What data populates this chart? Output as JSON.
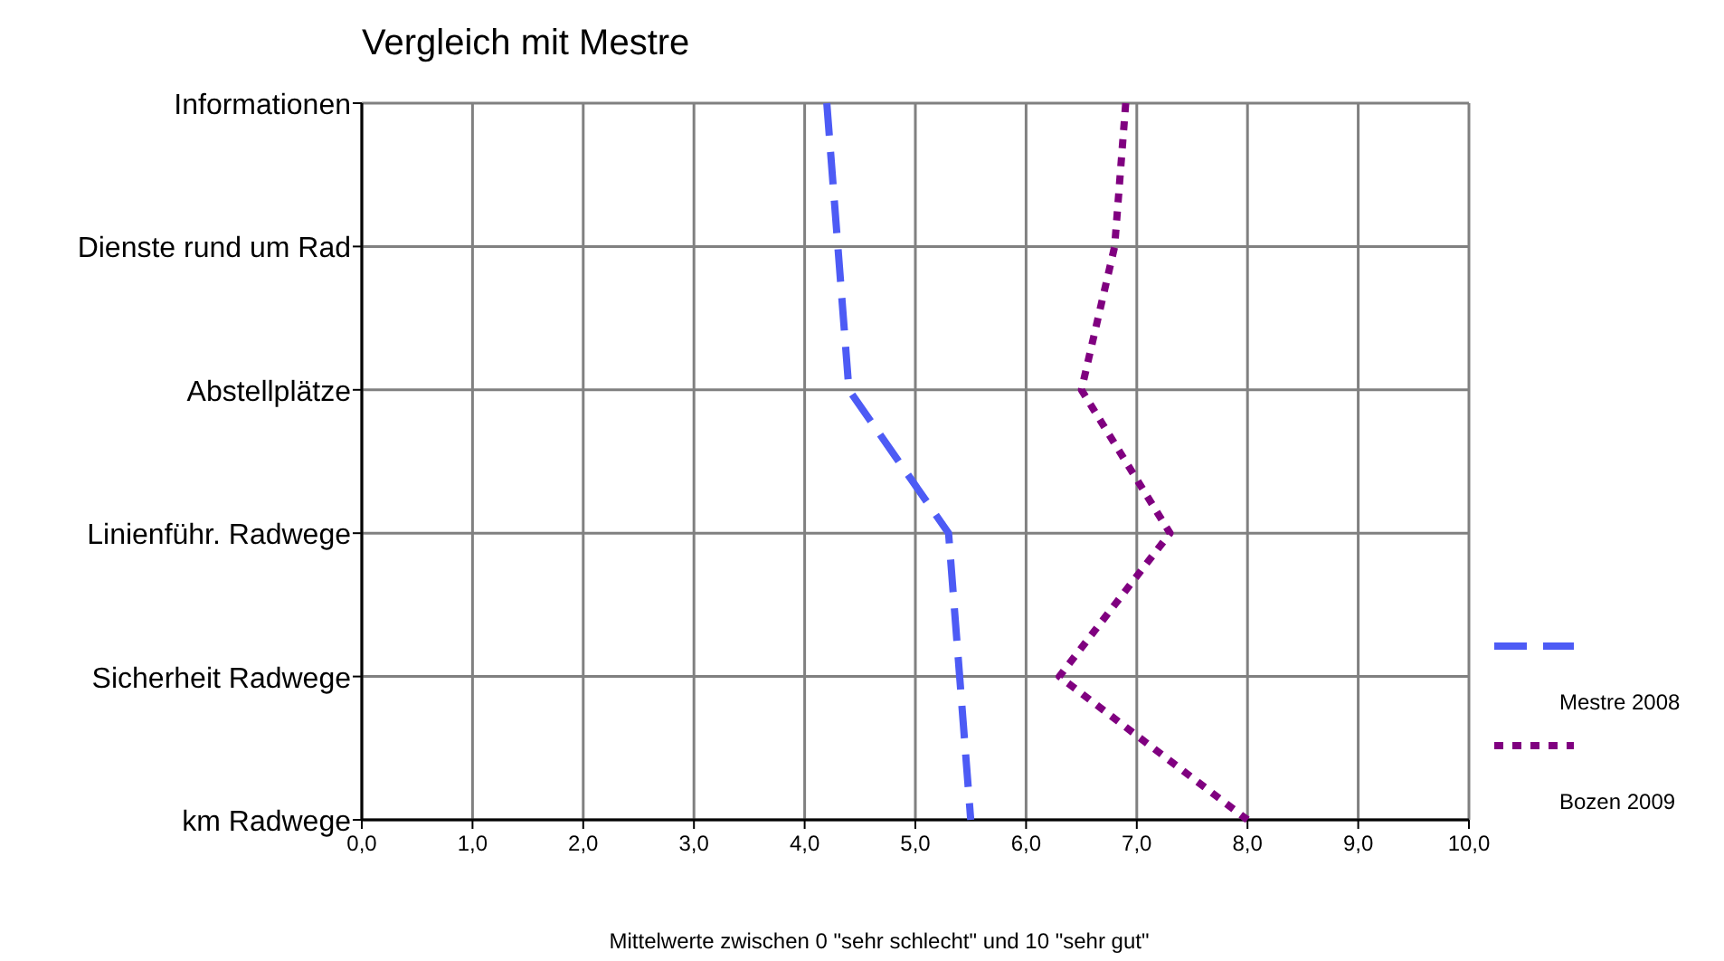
{
  "chart_data": {
    "type": "line",
    "title": "Vergleich mit Mestre",
    "xlabel": "Mittelwerte zwischen 0 \"sehr schlecht\" und 10 \"sehr gut\"",
    "orientation": "horizontal",
    "categories": [
      "Informationen",
      "Dienste rund um Rad",
      "Abstellplätze",
      "Linienführ. Radwege",
      "Sicherheit Radwege",
      "km Radwege"
    ],
    "series": [
      {
        "name": "Mestre 2008",
        "color": "#4d5bf5",
        "line_style": "dashed",
        "values": [
          4.2,
          4.3,
          4.4,
          5.3,
          5.4,
          5.5
        ]
      },
      {
        "name": "Bozen 2009",
        "color": "#800080",
        "line_style": "dotted",
        "values": [
          6.9,
          6.8,
          6.5,
          7.3,
          6.3,
          8.0
        ]
      }
    ],
    "xlim": [
      0,
      10
    ],
    "xticks": [
      {
        "value": 0,
        "label": "0,0"
      },
      {
        "value": 1,
        "label": "1,0"
      },
      {
        "value": 2,
        "label": "2,0"
      },
      {
        "value": 3,
        "label": "3,0"
      },
      {
        "value": 4,
        "label": "4,0"
      },
      {
        "value": 5,
        "label": "5,0"
      },
      {
        "value": 6,
        "label": "6,0"
      },
      {
        "value": 7,
        "label": "7,0"
      },
      {
        "value": 8,
        "label": "8,0"
      },
      {
        "value": 9,
        "label": "9,0"
      },
      {
        "value": 10,
        "label": "10,0"
      }
    ],
    "grid": true,
    "legend": "right"
  }
}
